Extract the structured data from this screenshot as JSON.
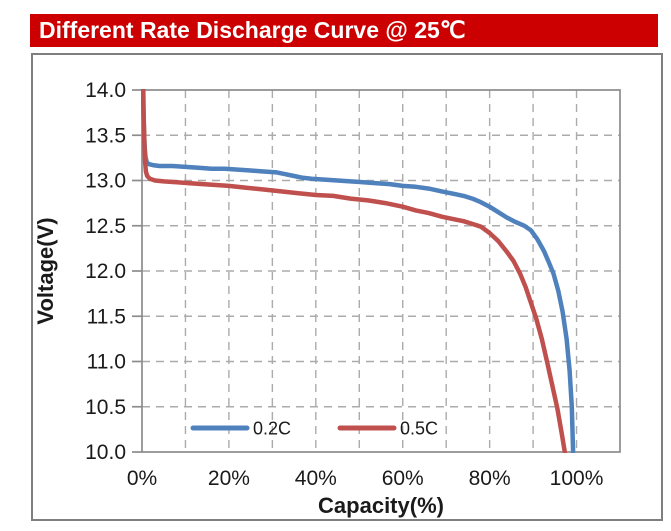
{
  "title_bar": {
    "text": "Different Rate Discharge Curve @ 25℃"
  },
  "colors": {
    "title_bg": "#CC0000",
    "title_fg": "#FFFFFF",
    "box_border": "#7F7F7F",
    "plot_frame": "#8C8C8C",
    "gridline": "#ABABAB",
    "tick_label": "#1A1A1A",
    "series_0_2C": "#4F81BD",
    "series_0_5C": "#C0504D"
  },
  "chart_data": {
    "type": "line",
    "title": "Different Rate Discharge Curve @ 25℃",
    "xlabel": "Capacity(%)",
    "ylabel": "Voltage(V)",
    "xlim": [
      0,
      110
    ],
    "ylim": [
      10.0,
      14.0
    ],
    "grid": "dashed",
    "x_minor_grid_step": 10,
    "y_grid_step": 0.5,
    "legend_position": "bottom-inside",
    "x_ticks": [
      {
        "value": 0,
        "label": "0%"
      },
      {
        "value": 20,
        "label": "20%"
      },
      {
        "value": 40,
        "label": "40%"
      },
      {
        "value": 60,
        "label": "60%"
      },
      {
        "value": 80,
        "label": "80%"
      },
      {
        "value": 100,
        "label": "100%"
      }
    ],
    "y_ticks": [
      {
        "value": 14.0,
        "label": "14.0"
      },
      {
        "value": 13.5,
        "label": "13.5"
      },
      {
        "value": 13.0,
        "label": "13.0"
      },
      {
        "value": 12.5,
        "label": "12.5"
      },
      {
        "value": 12.0,
        "label": "12.0"
      },
      {
        "value": 11.5,
        "label": "11.5"
      },
      {
        "value": 11.0,
        "label": "11.0"
      },
      {
        "value": 10.5,
        "label": "10.5"
      },
      {
        "value": 10.0,
        "label": "10.0"
      }
    ],
    "series": [
      {
        "name": "0.2C",
        "color": "#4F81BD",
        "points": [
          [
            0.2,
            14.0
          ],
          [
            0.3,
            13.8
          ],
          [
            0.45,
            13.55
          ],
          [
            0.6,
            13.38
          ],
          [
            0.8,
            13.26
          ],
          [
            1.1,
            13.2
          ],
          [
            1.6,
            13.18
          ],
          [
            2.5,
            13.17
          ],
          [
            4,
            13.16
          ],
          [
            7,
            13.16
          ],
          [
            10,
            13.15
          ],
          [
            13,
            13.14
          ],
          [
            16,
            13.13
          ],
          [
            19,
            13.13
          ],
          [
            22,
            13.12
          ],
          [
            25,
            13.11
          ],
          [
            28,
            13.1
          ],
          [
            31,
            13.09
          ],
          [
            33,
            13.07
          ],
          [
            35,
            13.05
          ],
          [
            37,
            13.03
          ],
          [
            39,
            13.02
          ],
          [
            42,
            13.01
          ],
          [
            45,
            13.0
          ],
          [
            48,
            12.99
          ],
          [
            51,
            12.98
          ],
          [
            54,
            12.97
          ],
          [
            57,
            12.96
          ],
          [
            60,
            12.94
          ],
          [
            63,
            12.93
          ],
          [
            66,
            12.91
          ],
          [
            69,
            12.88
          ],
          [
            72,
            12.85
          ],
          [
            74,
            12.83
          ],
          [
            76,
            12.8
          ],
          [
            78,
            12.76
          ],
          [
            80,
            12.71
          ],
          [
            82,
            12.65
          ],
          [
            84,
            12.59
          ],
          [
            86,
            12.54
          ],
          [
            88,
            12.5
          ],
          [
            89.5,
            12.45
          ],
          [
            91,
            12.35
          ],
          [
            92.5,
            12.22
          ],
          [
            93.6,
            12.1
          ],
          [
            94.7,
            11.97
          ],
          [
            95.8,
            11.78
          ],
          [
            96.8,
            11.55
          ],
          [
            97.7,
            11.25
          ],
          [
            98.4,
            10.9
          ],
          [
            98.9,
            10.5
          ],
          [
            99.2,
            10.0
          ]
        ]
      },
      {
        "name": "0.5C",
        "color": "#C0504D",
        "points": [
          [
            0.3,
            14.0
          ],
          [
            0.4,
            13.7
          ],
          [
            0.55,
            13.42
          ],
          [
            0.7,
            13.22
          ],
          [
            0.9,
            13.1
          ],
          [
            1.2,
            13.05
          ],
          [
            1.8,
            13.02
          ],
          [
            3,
            13.0
          ],
          [
            5,
            12.99
          ],
          [
            8,
            12.98
          ],
          [
            11,
            12.97
          ],
          [
            14,
            12.96
          ],
          [
            17,
            12.95
          ],
          [
            20,
            12.94
          ],
          [
            24,
            12.92
          ],
          [
            28,
            12.9
          ],
          [
            32,
            12.88
          ],
          [
            36,
            12.86
          ],
          [
            40,
            12.84
          ],
          [
            44,
            12.83
          ],
          [
            48,
            12.8
          ],
          [
            52,
            12.78
          ],
          [
            56,
            12.75
          ],
          [
            60,
            12.71
          ],
          [
            63,
            12.67
          ],
          [
            66,
            12.64
          ],
          [
            69,
            12.6
          ],
          [
            72,
            12.57
          ],
          [
            74,
            12.55
          ],
          [
            76,
            12.52
          ],
          [
            78,
            12.49
          ],
          [
            80,
            12.42
          ],
          [
            82,
            12.33
          ],
          [
            84,
            12.21
          ],
          [
            85.5,
            12.11
          ],
          [
            87,
            11.97
          ],
          [
            88.3,
            11.82
          ],
          [
            89.5,
            11.65
          ],
          [
            90.7,
            11.48
          ],
          [
            92,
            11.25
          ],
          [
            93.2,
            11.0
          ],
          [
            94.4,
            10.74
          ],
          [
            95.6,
            10.48
          ],
          [
            96.6,
            10.2
          ],
          [
            97.3,
            10.0
          ]
        ]
      }
    ]
  }
}
